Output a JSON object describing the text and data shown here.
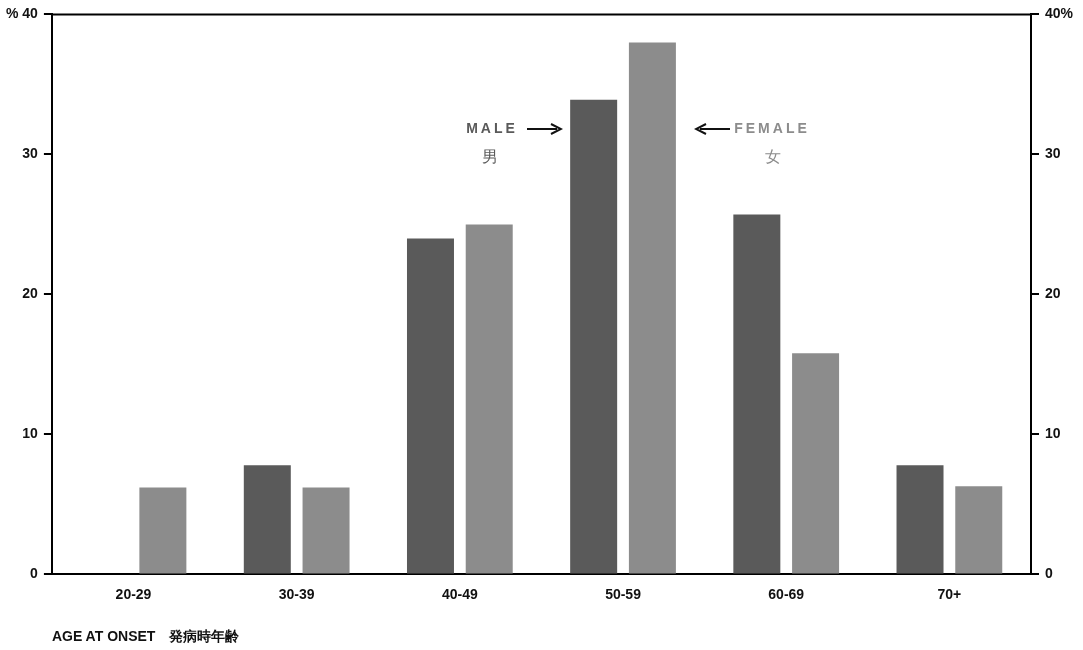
{
  "chart_data": {
    "type": "bar",
    "categories": [
      "20-29",
      "30-39",
      "40-49",
      "50-59",
      "60-69",
      "70+"
    ],
    "series": [
      {
        "name": "MALE",
        "color": "#5a5a5a",
        "values": [
          0,
          7.8,
          24.0,
          33.9,
          25.7,
          7.8
        ]
      },
      {
        "name": "FEMALE",
        "color": "#8c8c8c",
        "values": [
          6.2,
          6.2,
          25.0,
          38.0,
          15.8,
          6.3
        ]
      }
    ],
    "xlabel": "AGE AT ONSET　発病時年齢",
    "annotations": [
      "男",
      "女"
    ],
    "ylim": [
      0,
      40
    ],
    "yticks": [
      0,
      10,
      20,
      30,
      {
        "value": 40,
        "label": "% 40"
      }
    ],
    "y2lim": [
      0,
      40
    ],
    "y2ticks": [
      0,
      10,
      20,
      30,
      {
        "value": 40,
        "label": "40%"
      }
    ],
    "grid": false,
    "legend": false
  }
}
